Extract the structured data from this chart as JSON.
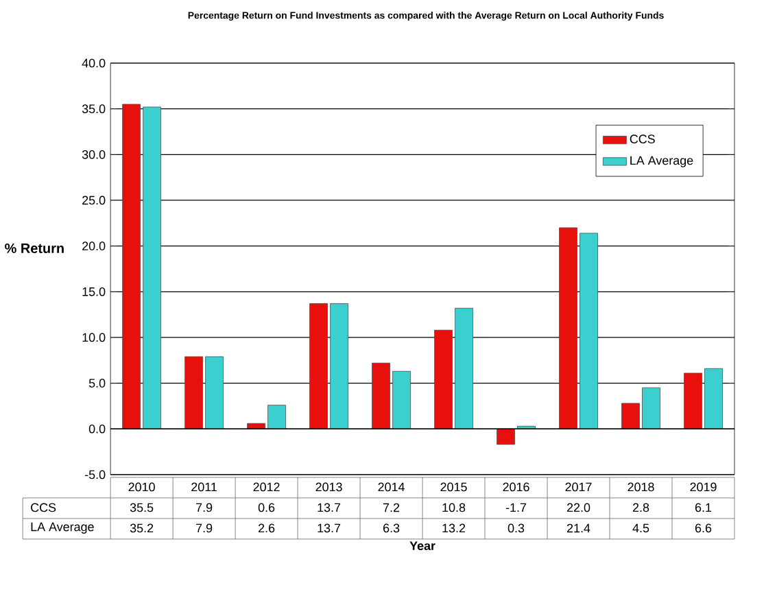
{
  "chart_data": {
    "type": "bar",
    "title": "Percentage Return on Fund Investments as compared with the Average Return on Local Authority Funds",
    "xlabel": "Year",
    "ylabel": "% Return",
    "categories": [
      "2010",
      "2011",
      "2012",
      "2013",
      "2014",
      "2015",
      "2016",
      "2017",
      "2018",
      "2019"
    ],
    "series": [
      {
        "name": "CCS",
        "color": "#e8100c",
        "values": [
          35.5,
          7.9,
          0.6,
          13.7,
          7.2,
          10.8,
          -1.7,
          22.0,
          2.8,
          6.1
        ],
        "value_labels": [
          "35.5",
          "7.9",
          "0.6",
          "13.7",
          "7.2",
          "10.8",
          "-1.7",
          "22.0",
          "2.8",
          "6.1"
        ]
      },
      {
        "name": "LA Average",
        "color": "#3ccfcf",
        "values": [
          35.2,
          7.9,
          2.6,
          13.7,
          6.3,
          13.2,
          0.3,
          21.4,
          4.5,
          6.6
        ],
        "value_labels": [
          "35.2",
          "7.9",
          "2.6",
          "13.7",
          "6.3",
          "13.2",
          "0.3",
          "21.4",
          "4.5",
          "6.6"
        ]
      }
    ],
    "ylim": [
      -5,
      40
    ],
    "yticks": [
      {
        "value": -5,
        "label": "-5.0"
      },
      {
        "value": 0,
        "label": "0.0"
      },
      {
        "value": 5,
        "label": "5.0"
      },
      {
        "value": 10,
        "label": "10.0"
      },
      {
        "value": 15,
        "label": "15.0"
      },
      {
        "value": 20,
        "label": "20.0"
      },
      {
        "value": 25,
        "label": "25.0"
      },
      {
        "value": 30,
        "label": "30.0"
      },
      {
        "value": 35,
        "label": "35.0"
      },
      {
        "value": 40,
        "label": "40.0"
      }
    ],
    "grid": "y",
    "legend": "top right"
  }
}
